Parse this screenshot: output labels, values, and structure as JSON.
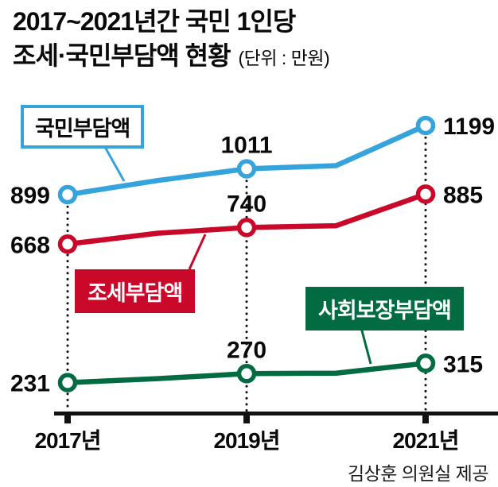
{
  "title": {
    "line1": "2017~2021년간 국민 1인당",
    "line2": "조세·국민부담액 현황",
    "unit": "(단위 : 만원)"
  },
  "source": "김상훈 의원실 제공",
  "chart_data": {
    "type": "line",
    "title": "2017~2021년간 국민 1인당 조세·국민부담액 현황",
    "unit": "만원",
    "xlabel": "",
    "ylabel": "",
    "grid": false,
    "x_years": [
      2017,
      2018,
      2019,
      2020,
      2021
    ],
    "x_tick_labels": [
      "2017년",
      "2019년",
      "2021년"
    ],
    "labeled_years": [
      2017,
      2019,
      2021
    ],
    "series": [
      {
        "name": "국민부담액",
        "color": "#35a3dc",
        "values": [
          899,
          960,
          1011,
          1025,
          1199
        ],
        "labeled_values": [
          899,
          1011,
          1199
        ]
      },
      {
        "name": "조세부담액",
        "color": "#c9082a",
        "values": [
          668,
          715,
          740,
          748,
          885
        ],
        "labeled_values": [
          668,
          740,
          885
        ]
      },
      {
        "name": "사회보장부담액",
        "color": "#036b41",
        "values": [
          231,
          248,
          270,
          272,
          315
        ],
        "labeled_values": [
          231,
          270,
          315
        ]
      }
    ]
  }
}
